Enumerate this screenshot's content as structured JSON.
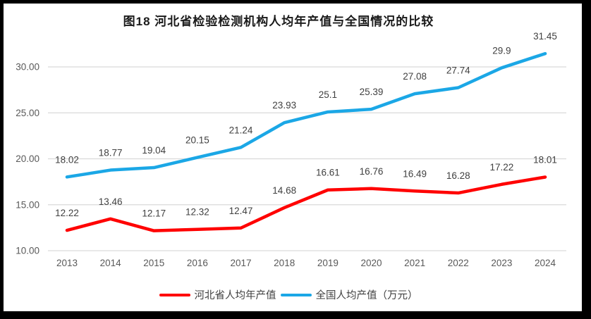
{
  "title": "图18 河北省检验检测机构人均年产值与全国情况的比较",
  "colors": {
    "hebei": "#FF0000",
    "national": "#1BA7E6",
    "gridline": "#D9D9D9",
    "tick_text": "#595959",
    "label_text": "#404040",
    "frame_border": "#000000",
    "background": "#FFFFFF"
  },
  "chart_data": {
    "type": "line",
    "title": "图18 河北省检验检测机构人均年产值与全国情况的比较",
    "categories": [
      "2013",
      "2014",
      "2015",
      "2016",
      "2017",
      "2018",
      "2019",
      "2020",
      "2021",
      "2022",
      "2023",
      "2024"
    ],
    "series": [
      {
        "name": "河北省人均年产值",
        "color_key": "hebei",
        "values": [
          12.22,
          13.46,
          12.17,
          12.32,
          12.47,
          14.68,
          16.61,
          16.76,
          16.49,
          16.28,
          17.22,
          18.01
        ]
      },
      {
        "name": "全国人均产值（万元）",
        "color_key": "national",
        "values": [
          18.02,
          18.77,
          19.04,
          20.15,
          21.24,
          23.93,
          25.1,
          25.39,
          27.08,
          27.74,
          29.9,
          31.45
        ]
      }
    ],
    "y_ticks": [
      {
        "label": "30.00",
        "value": 30
      },
      {
        "label": "25.00",
        "value": 25
      },
      {
        "label": "20.00",
        "value": 20
      },
      {
        "label": "15.00",
        "value": 15
      },
      {
        "label": "10.00",
        "value": 10
      }
    ],
    "xlabel": "",
    "ylabel": "",
    "ylim": [
      10,
      32.5
    ],
    "grid": true,
    "data_labels": true,
    "legend_position": "bottom"
  }
}
